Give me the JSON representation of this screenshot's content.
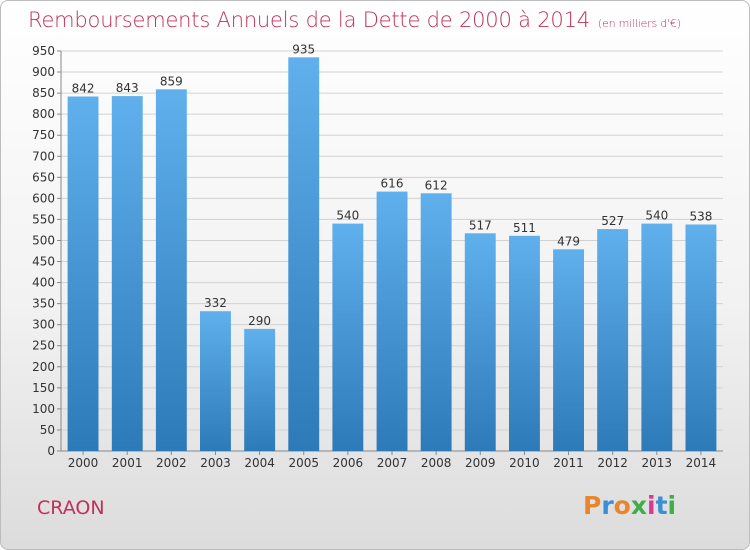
{
  "header": {
    "title": "Remboursements Annuels de la Dette de 2000 à 2014",
    "unit": "(en milliers d'€)"
  },
  "footer": {
    "city": "CRAON",
    "logo": "Proxiti"
  },
  "colors": {
    "title": "#c0305a",
    "bar_top": "#5fb0ec",
    "bar_bottom": "#2d7ab8"
  },
  "chart_data": {
    "type": "bar",
    "title": "Remboursements Annuels de la Dette de 2000 à 2014",
    "xlabel": "",
    "ylabel": "",
    "ylim": [
      0,
      950
    ],
    "ytick_step": 50,
    "grid": true,
    "categories": [
      "2000",
      "2001",
      "2002",
      "2003",
      "2004",
      "2005",
      "2006",
      "2007",
      "2008",
      "2009",
      "2010",
      "2011",
      "2012",
      "2013",
      "2014"
    ],
    "values": [
      842,
      843,
      859,
      332,
      290,
      935,
      540,
      616,
      612,
      517,
      511,
      479,
      527,
      540,
      538
    ]
  }
}
